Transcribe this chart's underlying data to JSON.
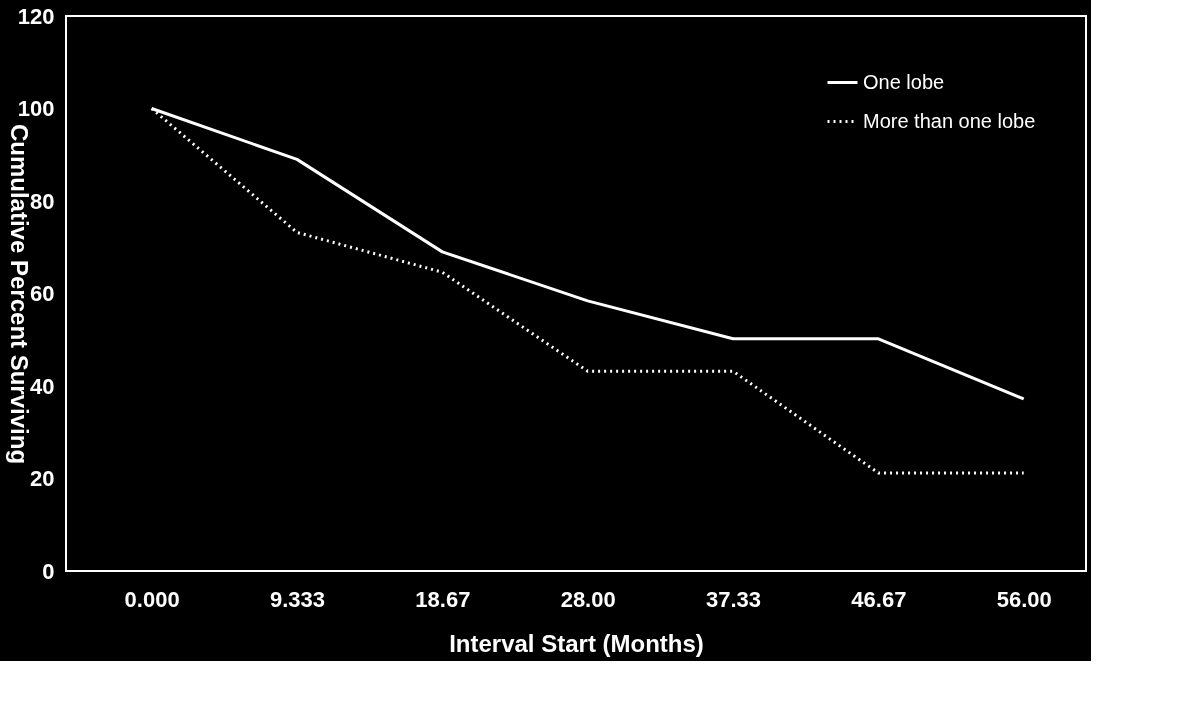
{
  "chart_data": {
    "type": "line",
    "xlabel": "Interval Start (Months)",
    "ylabel": "Cumulative Percent Surviving",
    "x": [
      0,
      9.333,
      18.667,
      28,
      37.333,
      46.667,
      56
    ],
    "series": [
      {
        "name": "One lobe",
        "color": "#ffffff",
        "line_style": "solid",
        "values": [
          100,
          89,
          69,
          58.4,
          50.2,
          50.2,
          37.2
        ]
      },
      {
        "name": "More than one lobe",
        "color": "#ffffff",
        "line_style": "dotted",
        "values": [
          100,
          73.2,
          64.6,
          43.2,
          43.2,
          21.2,
          21.2
        ]
      }
    ],
    "xlim": [
      -5.5,
      60
    ],
    "xticks": [
      {
        "value": 0,
        "label": "0.000"
      },
      9.333,
      {
        "value": 18.667,
        "label": "18.67"
      },
      {
        "value": 28,
        "label": "28.00"
      },
      {
        "value": 37.333,
        "label": "37.33"
      },
      {
        "value": 46.667,
        "label": "46.67"
      },
      {
        "value": 56,
        "label": "56.00"
      }
    ],
    "ylim": [
      0,
      120
    ],
    "yticks": [
      0,
      20,
      40,
      60,
      80,
      100,
      120
    ],
    "grid": false,
    "legend": "top right",
    "marker": "none"
  }
}
